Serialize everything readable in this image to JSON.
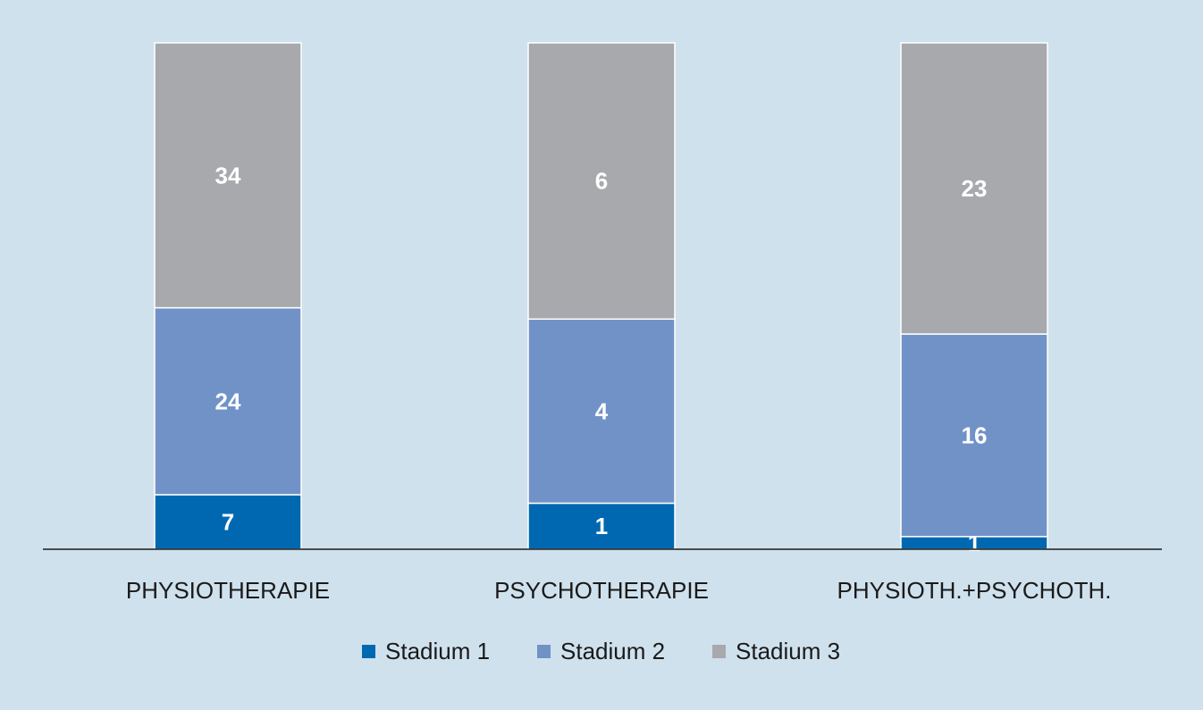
{
  "chart_data": {
    "type": "bar",
    "stacked": "percent",
    "categories": [
      "PHYSIOTHERAPIE",
      "PSYCHOTHERAPIE",
      "PHYSIOTH.+PSYCHOTH."
    ],
    "series": [
      {
        "name": "Stadium 1",
        "color": "#0068b0",
        "values": [
          7,
          1,
          1
        ]
      },
      {
        "name": "Stadium 2",
        "color": "#7092c7",
        "values": [
          24,
          4,
          16
        ]
      },
      {
        "name": "Stadium 3",
        "color": "#a7a9ac",
        "values": [
          34,
          6,
          23
        ]
      }
    ],
    "ylim": [
      0,
      100
    ],
    "legend": "bottom",
    "grid": false
  }
}
